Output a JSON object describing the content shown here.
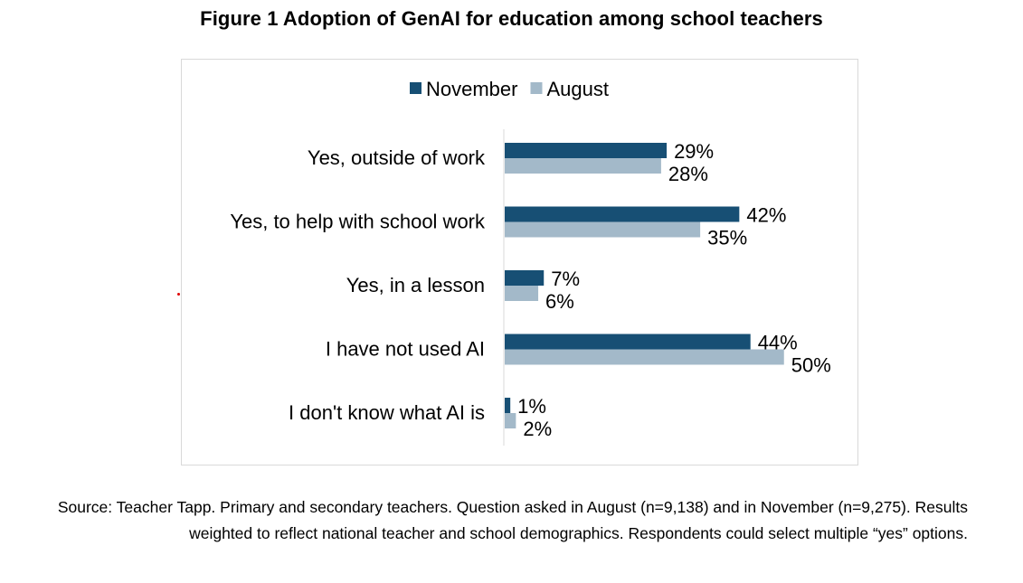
{
  "title": "Figure 1 Adoption of GenAI for education among school teachers",
  "source": "Source: Teacher Tapp. Primary and secondary teachers. Question asked in August (n=9,138) and in November (n=9,275). Results weighted to reflect national teacher and school demographics. Respondents could select multiple “yes” options.",
  "chart_data": {
    "type": "bar",
    "orientation": "horizontal",
    "categories": [
      "Yes, outside of work",
      "Yes, to help with school work",
      "Yes, in a lesson",
      "I have not used AI",
      "I don't know what AI is"
    ],
    "series": [
      {
        "name": "November",
        "color": "#174f74",
        "values": [
          29,
          42,
          7,
          44,
          1
        ],
        "labels": [
          "29%",
          "42%",
          "7%",
          "44%",
          "1%"
        ]
      },
      {
        "name": "August",
        "color": "#a3b9c9",
        "values": [
          28,
          35,
          6,
          50,
          2
        ],
        "labels": [
          "28%",
          "35%",
          "6%",
          "50%",
          "2%"
        ]
      }
    ],
    "xlim": [
      0,
      55
    ],
    "grid": false,
    "legend": "top-center"
  }
}
